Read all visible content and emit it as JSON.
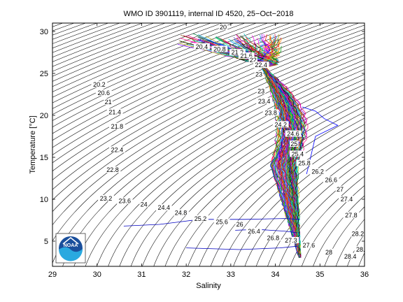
{
  "chart_data": {
    "type": "line",
    "title": "WMO ID 3901119, internal ID 4520, 25−Oct−2018",
    "xlabel": "Salinity",
    "ylabel": "Temperature [°C]",
    "xlim": [
      29,
      36
    ],
    "ylim": [
      2,
      31
    ],
    "xticks": [
      29,
      30,
      31,
      32,
      33,
      34,
      35,
      36
    ],
    "yticks": [
      5,
      10,
      15,
      20,
      25,
      30
    ],
    "grid": false,
    "legend": "none",
    "density_contour_labels": [
      {
        "label": "20",
        "s": 32.83,
        "t": 30.4
      },
      {
        "label": "20.4",
        "s": 32.35,
        "t": 28.1
      },
      {
        "label": "20.8",
        "s": 32.75,
        "t": 27.8
      },
      {
        "label": "21.2",
        "s": 33.15,
        "t": 27.4
      },
      {
        "label": "21.6",
        "s": 33.35,
        "t": 27.0
      },
      {
        "label": "22",
        "s": 33.5,
        "t": 26.5
      },
      {
        "label": "22.4",
        "s": 33.68,
        "t": 25.9
      },
      {
        "label": "23",
        "s": 33.63,
        "t": 24.8
      },
      {
        "label": "23",
        "s": 33.68,
        "t": 22.8
      },
      {
        "label": "23.4",
        "s": 33.75,
        "t": 21.6
      },
      {
        "label": "23.8",
        "s": 33.9,
        "t": 20.2
      },
      {
        "label": "24.2",
        "s": 34.12,
        "t": 18.8
      },
      {
        "label": "24.6",
        "s": 34.4,
        "t": 17.7
      },
      {
        "label": "25",
        "s": 34.42,
        "t": 16.5
      },
      {
        "label": "25.4",
        "s": 34.5,
        "t": 15.3
      },
      {
        "label": "25.8",
        "s": 34.65,
        "t": 14.2
      },
      {
        "label": "26.2",
        "s": 34.95,
        "t": 13.2
      },
      {
        "label": "26.6",
        "s": 35.25,
        "t": 12.2
      },
      {
        "label": "27",
        "s": 35.45,
        "t": 11.1
      },
      {
        "label": "27.4",
        "s": 35.6,
        "t": 9.9
      },
      {
        "label": "27.8",
        "s": 35.7,
        "t": 8.0
      },
      {
        "label": "28.2",
        "s": 35.85,
        "t": 5.8
      },
      {
        "label": "28.6",
        "s": 35.95,
        "t": 3.9
      },
      {
        "label": "28.4",
        "s": 35.68,
        "t": 3.1
      },
      {
        "label": "28",
        "s": 35.2,
        "t": 3.6
      },
      {
        "label": "27.6",
        "s": 34.75,
        "t": 4.4
      },
      {
        "label": "27.3",
        "s": 34.35,
        "t": 5.0
      },
      {
        "label": "26.8",
        "s": 33.95,
        "t": 5.3
      },
      {
        "label": "26.4",
        "s": 33.52,
        "t": 6.1
      },
      {
        "label": "26",
        "s": 33.2,
        "t": 6.9
      },
      {
        "label": "25.6",
        "s": 32.8,
        "t": 7.2
      },
      {
        "label": "25.2",
        "s": 32.32,
        "t": 7.6
      },
      {
        "label": "24.8",
        "s": 31.88,
        "t": 8.3
      },
      {
        "label": "24.4",
        "s": 31.5,
        "t": 8.9
      },
      {
        "label": "24",
        "s": 31.05,
        "t": 9.3
      },
      {
        "label": "23.6",
        "s": 30.62,
        "t": 9.7
      },
      {
        "label": "23.2",
        "s": 30.2,
        "t": 10.0
      },
      {
        "label": "22.8",
        "s": 30.35,
        "t": 13.4
      },
      {
        "label": "22.4",
        "s": 30.45,
        "t": 15.8
      },
      {
        "label": "21.8",
        "s": 30.45,
        "t": 18.6
      },
      {
        "label": "21.4",
        "s": 30.4,
        "t": 20.3
      },
      {
        "label": "21",
        "s": 30.25,
        "t": 21.5
      },
      {
        "label": "20.6",
        "s": 30.15,
        "t": 22.6
      },
      {
        "label": "20.2",
        "s": 30.05,
        "t": 23.6
      }
    ],
    "logo": {
      "text": "NOAA",
      "color": "#1a4f9c",
      "accent": "#29a9e0"
    },
    "profile_colors": [
      "#0000ff",
      "#ff0000",
      "#00a000",
      "#ff00ff",
      "#00c0c0",
      "#c0c000",
      "#000000",
      "#8000ff",
      "#ff8000",
      "#0080ff",
      "#008040",
      "#804000",
      "#ff0080",
      "#40c0ff",
      "#a0a000",
      "#6040c0",
      "#00ff80",
      "#c00040"
    ],
    "background_color": "#ffffff",
    "contour_color": "#000000"
  }
}
